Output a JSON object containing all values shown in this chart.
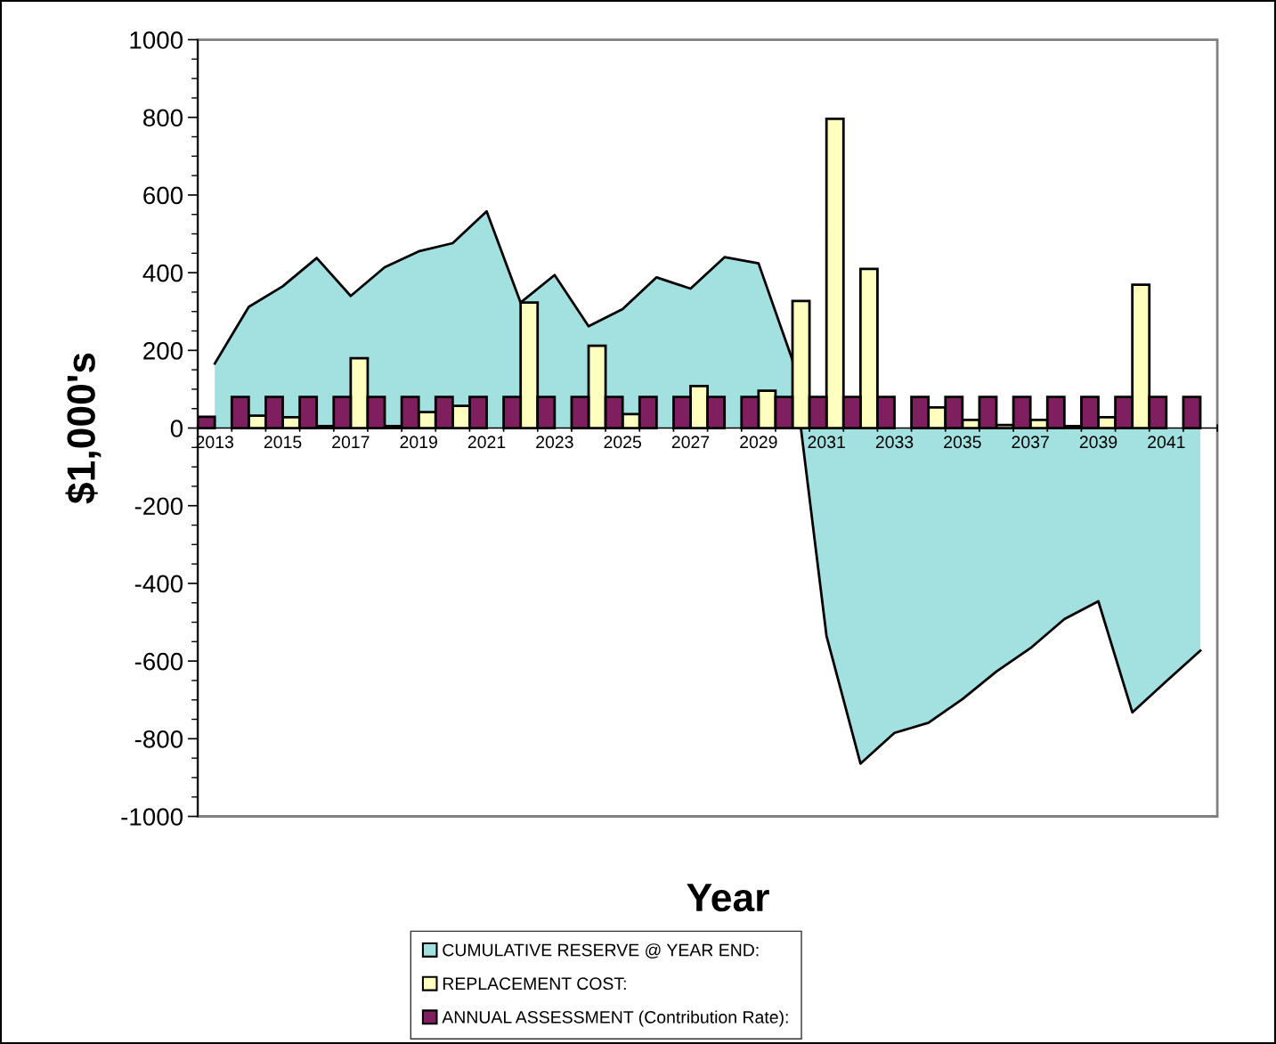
{
  "chart_data": {
    "type": "bar",
    "xlabel": "Year",
    "ylabel": "$1,000's",
    "categories": [
      "2013",
      null,
      "2015",
      null,
      "2017",
      null,
      "2019",
      null,
      "2021",
      null,
      "2023",
      null,
      "2025",
      null,
      "2027",
      null,
      "2029",
      null,
      "2031",
      null,
      "2033",
      null,
      "2035",
      null,
      "2037",
      null,
      "2039",
      null,
      "2041",
      null
    ],
    "series": [
      {
        "name": "CUMULATIVE RESERVE @ YEAR END:",
        "type": "area",
        "color": "#a3e0e0",
        "values": [
          166,
          312,
          365,
          438,
          340,
          414,
          455,
          476,
          558,
          323,
          394,
          262,
          306,
          388,
          359,
          440,
          424,
          175,
          -535,
          -864,
          -785,
          -759,
          -698,
          -627,
          -567,
          -492,
          -446,
          -732,
          -652,
          -573
        ]
      },
      {
        "name": "REPLACEMENT COST:",
        "color": "#ffffc0",
        "values": [
          null,
          32,
          28,
          5,
          180,
          5,
          41,
          57,
          null,
          323,
          null,
          212,
          36,
          null,
          108,
          null,
          96,
          327,
          796,
          410,
          null,
          53,
          21,
          8,
          21,
          5,
          28,
          369,
          null,
          null
        ]
      },
      {
        "name": "ANNUAL ASSESSMENT (Contribution Rate):",
        "color": "#7f1f5f",
        "values": [
          29,
          80,
          80,
          80,
          80,
          80,
          80,
          80,
          80,
          80,
          80,
          80,
          80,
          80,
          80,
          80,
          80,
          80,
          80,
          80,
          80,
          80,
          80,
          80,
          80,
          80,
          80,
          80,
          80,
          80
        ]
      }
    ],
    "ylim": [
      -1000,
      1000
    ],
    "yticks": [
      -1000,
      -800,
      -600,
      -400,
      -200,
      0,
      200,
      400,
      600,
      800,
      1000
    ],
    "grid": false,
    "legend": "bottom"
  }
}
